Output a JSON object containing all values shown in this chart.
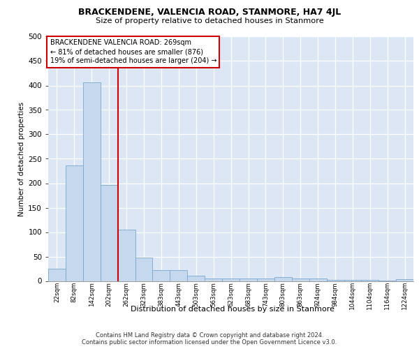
{
  "title": "BRACKENDENE, VALENCIA ROAD, STANMORE, HA7 4JL",
  "subtitle": "Size of property relative to detached houses in Stanmore",
  "xlabel": "Distribution of detached houses by size in Stanmore",
  "ylabel": "Number of detached properties",
  "bar_color": "#c5d8ee",
  "bar_edge_color": "#7aa8cc",
  "background_color": "#dce6f5",
  "vline_color": "#cc0000",
  "vline_x_idx": 3.5,
  "annotation_text": "BRACKENDENE VALENCIA ROAD: 269sqm\n← 81% of detached houses are smaller (876)\n19% of semi-detached houses are larger (204) →",
  "categories": [
    "22sqm",
    "82sqm",
    "142sqm",
    "202sqm",
    "262sqm",
    "323sqm",
    "383sqm",
    "443sqm",
    "503sqm",
    "563sqm",
    "623sqm",
    "683sqm",
    "743sqm",
    "803sqm",
    "863sqm",
    "924sqm",
    "984sqm",
    "1044sqm",
    "1104sqm",
    "1164sqm",
    "1224sqm"
  ],
  "values": [
    25,
    237,
    407,
    197,
    105,
    48,
    22,
    22,
    11,
    5,
    5,
    5,
    5,
    8,
    5,
    5,
    2,
    2,
    2,
    1,
    4
  ],
  "ylim": [
    0,
    500
  ],
  "yticks": [
    0,
    50,
    100,
    150,
    200,
    250,
    300,
    350,
    400,
    450,
    500
  ],
  "footer_line1": "Contains HM Land Registry data © Crown copyright and database right 2024.",
  "footer_line2": "Contains public sector information licensed under the Open Government Licence v3.0."
}
